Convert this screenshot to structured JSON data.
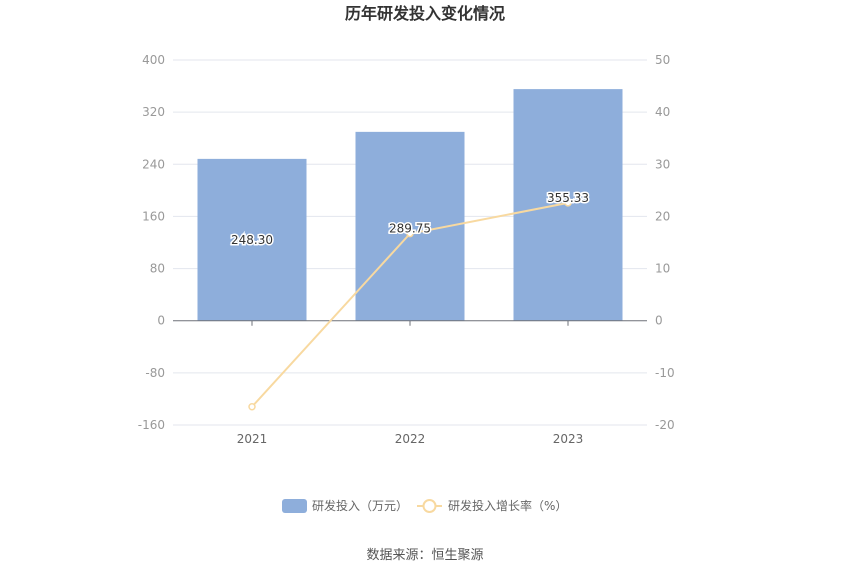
{
  "chart_data": {
    "type": "bar",
    "title": "历年研发投入变化情况",
    "categories": [
      "2021",
      "2022",
      "2023"
    ],
    "series": [
      {
        "name": "研发投入（万元）",
        "type": "bar",
        "axis": "left",
        "color": "#8eaedb",
        "values": [
          248.3,
          289.75,
          355.33
        ],
        "labels": [
          "248.30",
          "289.75",
          "355.33"
        ]
      },
      {
        "name": "研发投入增长率（%）",
        "type": "line",
        "axis": "right",
        "color": "#f8d9a0",
        "values": [
          -16.5,
          16.7,
          22.6
        ]
      }
    ],
    "y_left": {
      "ticks": [
        "400",
        "320",
        "240",
        "160",
        "80",
        "0",
        "-80",
        "-160"
      ],
      "range": [
        -160,
        400
      ]
    },
    "y_right": {
      "ticks": [
        "50",
        "40",
        "30",
        "20",
        "10",
        "0",
        "-10",
        "-20"
      ],
      "range": [
        -20,
        50
      ]
    },
    "grid": true,
    "legend_position": "bottom"
  },
  "source": "数据来源：恒生聚源"
}
